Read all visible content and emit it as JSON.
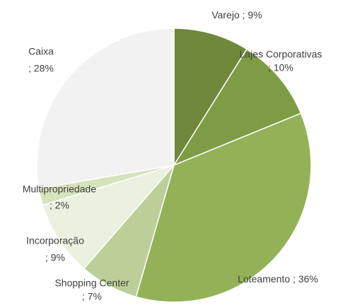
{
  "chart_data": {
    "type": "pie",
    "categories": [
      "Varejo",
      "Lajes Corporativas",
      "Loteamento",
      "Shopping Center",
      "Incorporação",
      "Multipropriedade",
      "Caixa"
    ],
    "values": [
      9,
      10,
      36,
      7,
      9,
      2,
      28
    ],
    "value_labels": [
      "; 9%",
      "; 10%",
      "; 36%",
      "; 7%",
      "; 9%",
      "; 2%",
      "; 28%"
    ],
    "colors": [
      "#6f883b",
      "#7e9c45",
      "#93b257",
      "#bccf98",
      "#ebf0df",
      "#d6e3bb",
      "#f2f2f2"
    ]
  }
}
